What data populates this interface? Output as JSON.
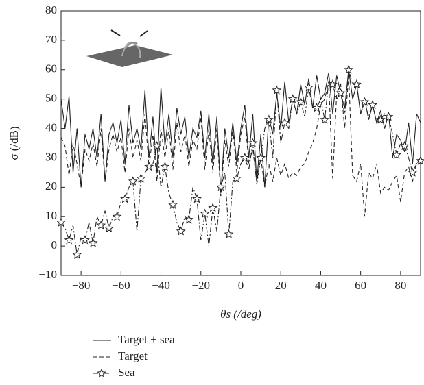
{
  "chart_data": {
    "type": "line",
    "x_label": "θs (/deg)",
    "y_label": "σ (/dB)",
    "x": [
      -90,
      -88,
      -86,
      -84,
      -82,
      -80,
      -78,
      -76,
      -74,
      -72,
      -70,
      -68,
      -66,
      -64,
      -62,
      -60,
      -58,
      -56,
      -54,
      -52,
      -50,
      -48,
      -46,
      -44,
      -42,
      -40,
      -38,
      -36,
      -34,
      -32,
      -30,
      -28,
      -26,
      -24,
      -22,
      -20,
      -18,
      -16,
      -14,
      -12,
      -10,
      -8,
      -6,
      -4,
      -2,
      0,
      2,
      4,
      6,
      8,
      10,
      12,
      14,
      16,
      18,
      20,
      22,
      24,
      26,
      28,
      30,
      32,
      34,
      36,
      38,
      40,
      42,
      44,
      46,
      48,
      50,
      52,
      54,
      56,
      58,
      60,
      62,
      64,
      66,
      68,
      70,
      72,
      74,
      76,
      78,
      80,
      82,
      84,
      86,
      88,
      90
    ],
    "series": [
      {
        "name": "Target + sea",
        "color": "#222222",
        "values": [
          50,
          40,
          51,
          25,
          40,
          20,
          38,
          33,
          40,
          30,
          45,
          22,
          38,
          42,
          35,
          43,
          28,
          48,
          35,
          40,
          33,
          53,
          30,
          44,
          25,
          54,
          34,
          45,
          30,
          47,
          38,
          44,
          30,
          40,
          37,
          46,
          30,
          45,
          28,
          44,
          18,
          40,
          30,
          42,
          28,
          40,
          48,
          30,
          45,
          22,
          38,
          20,
          44,
          38,
          52,
          40,
          56,
          42,
          50,
          45,
          55,
          48,
          57,
          47,
          58,
          50,
          52,
          59,
          45,
          58,
          52,
          47,
          60,
          50,
          55,
          45,
          50,
          43,
          48,
          42,
          46,
          40,
          45,
          30,
          38,
          36,
          32,
          42,
          28,
          45,
          42
        ]
      },
      {
        "name": "Target",
        "color": "#222222",
        "values": [
          37,
          34,
          24,
          35,
          28,
          20,
          33,
          29,
          35,
          27,
          40,
          22,
          33,
          38,
          32,
          37,
          25,
          40,
          30,
          36,
          29,
          45,
          27,
          38,
          22,
          40,
          30,
          40,
          26,
          42,
          32,
          38,
          27,
          36,
          33,
          44,
          26,
          40,
          25,
          40,
          17,
          36,
          27,
          40,
          25,
          38,
          44,
          28,
          33,
          22,
          30,
          20,
          28,
          22,
          30,
          24,
          28,
          23,
          25,
          24,
          27,
          28,
          32,
          35,
          40,
          48,
          50,
          56,
          23,
          52,
          55,
          40,
          58,
          24,
          22,
          28,
          10,
          25,
          23,
          28,
          18,
          20,
          19,
          22,
          24,
          15,
          25,
          27,
          22,
          28,
          30
        ]
      },
      {
        "name": "Sea",
        "color": "#222222",
        "values": [
          8,
          6,
          2,
          7,
          -3,
          3,
          2,
          8,
          1,
          10,
          7,
          12,
          6,
          10,
          10,
          15,
          16,
          20,
          22,
          5,
          23,
          25,
          27,
          28,
          34,
          20,
          27,
          18,
          14,
          8,
          5,
          10,
          9,
          20,
          16,
          2,
          11,
          0,
          13,
          5,
          20,
          25,
          4,
          22,
          23,
          28,
          30,
          26,
          35,
          21,
          30,
          40,
          43,
          30,
          53,
          35,
          42,
          40,
          50,
          45,
          49,
          44,
          54,
          47,
          47,
          50,
          43,
          56,
          55,
          50,
          52,
          45,
          60,
          55,
          55,
          45,
          49,
          44,
          48,
          42,
          43,
          45,
          44,
          38,
          31,
          35,
          34,
          30,
          25,
          28,
          29
        ]
      }
    ],
    "xlim": [
      -90,
      90
    ],
    "xticks": [
      {
        "value": -80,
        "label": "−80"
      },
      {
        "value": -60,
        "label": "−60"
      },
      {
        "value": -40,
        "label": "−40"
      },
      {
        "value": -20,
        "label": "−20"
      },
      0,
      20,
      40,
      60,
      80
    ],
    "ylim": [
      -10,
      80
    ],
    "yticks": [
      {
        "value": -10,
        "label": "−10"
      },
      0,
      10,
      20,
      30,
      40,
      50,
      60,
      70,
      80
    ]
  }
}
